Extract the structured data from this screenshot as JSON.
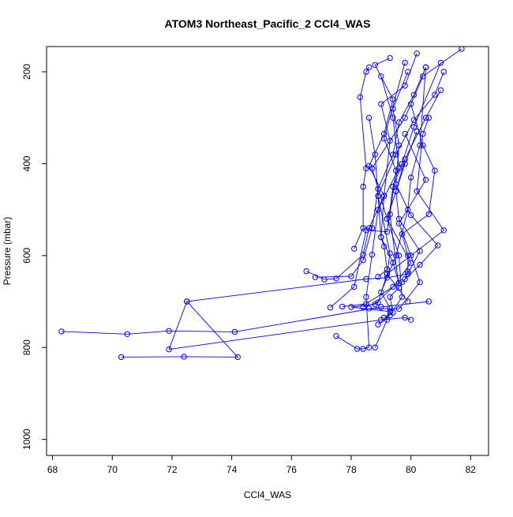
{
  "chart_data": {
    "type": "scatter",
    "title": "ATOM3 Northeast_Pacific_2 CCl4_WAS",
    "xlabel": "CCl4_WAS",
    "ylabel": "Pressure (mbar)",
    "xlim": [
      67.8,
      82.6
    ],
    "ylim": [
      1035,
      145
    ],
    "y_reversed": true,
    "grid": false,
    "legend": "none",
    "x_ticks": [
      68,
      70,
      72,
      74,
      76,
      78,
      80,
      82
    ],
    "y_ticks": [
      200,
      400,
      600,
      800,
      1000
    ],
    "colors": {
      "series": "#0000ff",
      "axis": "#000000"
    },
    "marker": "open-circle",
    "series": [
      {
        "x": [
          68.3,
          70.5,
          71.9,
          74.1,
          79.0,
          80.6
        ],
        "y": [
          765,
          771,
          764,
          766,
          712,
          700
        ]
      },
      {
        "x": [
          70.3,
          72.4,
          74.2,
          72.5,
          71.9,
          79.0,
          79.8,
          80.0
        ],
        "y": [
          821,
          820,
          821,
          700,
          804,
          740,
          735,
          740
        ]
      },
      {
        "x": [
          72.5,
          78.5,
          79.2,
          79.9,
          80.3,
          79.6,
          79.5,
          79.8,
          80.5,
          81.0
        ],
        "y": [
          700,
          651,
          648,
          640,
          590,
          520,
          460,
          390,
          300,
          240
        ]
      },
      {
        "x": [
          79.3,
          78.0,
          78.8,
          79.4,
          80.0,
          79.2,
          78.7,
          79.8,
          80.4,
          81.7
        ],
        "y": [
          722,
          712,
          706,
          668,
          616,
          520,
          410,
          300,
          210,
          150
        ]
      },
      {
        "x": [
          77.5,
          78.2,
          78.4,
          78.6,
          78.5,
          78.7,
          78.9,
          79.6,
          79.4,
          79.0
        ],
        "y": [
          775,
          803,
          803,
          800,
          690,
          598,
          500,
          410,
          300,
          210
        ]
      },
      {
        "x": [
          76.5,
          77.1,
          77.5,
          78.4,
          78.6,
          79.1,
          79.3,
          79.0,
          79.8,
          80.2
        ],
        "y": [
          634,
          652,
          650,
          598,
          540,
          470,
          350,
          270,
          230,
          160
        ]
      },
      {
        "x": [
          76.8,
          78.0,
          78.4,
          78.7,
          78.9,
          79.4,
          79.6,
          80.1,
          80.5
        ],
        "y": [
          647,
          645,
          610,
          540,
          455,
          380,
          310,
          250,
          190
        ]
      },
      {
        "x": [
          78.8,
          79.2,
          79.3,
          79.0,
          79.5,
          79.9,
          80.0,
          80.3,
          80.5
        ],
        "y": [
          800,
          740,
          714,
          680,
          600,
          500,
          430,
          360,
          190
        ]
      },
      {
        "x": [
          78.9,
          79.3,
          79.7,
          79.6,
          79.2,
          79.5,
          79.8,
          80.2
        ],
        "y": [
          750,
          730,
          690,
          600,
          520,
          460,
          400,
          330
        ]
      },
      {
        "x": [
          78.6,
          79.6,
          80.3,
          80.0,
          79.6,
          80.5,
          79.8
        ],
        "y": [
          715,
          716,
          658,
          600,
          530,
          435,
          335
        ]
      },
      {
        "x": [
          77.7,
          78.5,
          79.6,
          79.4,
          79.0,
          79.1,
          78.6,
          79.1,
          79.4,
          78.8,
          79.3
        ],
        "y": [
          711,
          705,
          660,
          615,
          560,
          470,
          405,
          335,
          260,
          185,
          170
        ]
      },
      {
        "x": [
          78.9,
          79.2,
          79.1,
          79.0,
          78.9,
          79.5,
          80.1,
          80.8,
          81.1
        ],
        "y": [
          646,
          630,
          580,
          560,
          470,
          380,
          305,
          250,
          200
        ]
      },
      {
        "x": [
          79.7,
          80.3,
          80.9,
          80.0,
          79.5,
          79.6,
          79.4,
          79.9
        ],
        "y": [
          658,
          620,
          578,
          512,
          445,
          360,
          280,
          200
        ]
      },
      {
        "x": [
          77.3,
          78.1,
          78.5,
          79.2,
          79.4,
          79.7,
          80.1,
          81.0
        ],
        "y": [
          713,
          668,
          545,
          548,
          450,
          400,
          320,
          180
        ]
      },
      {
        "x": [
          79.1,
          79.4,
          79.3,
          79.6,
          79.3,
          79.5,
          79.1,
          79.8
        ],
        "y": [
          735,
          724,
          690,
          670,
          510,
          415,
          345,
          180
        ]
      },
      {
        "x": [
          79.9,
          79.2,
          81.1,
          80.2,
          80.4,
          80.6
        ],
        "y": [
          700,
          640,
          545,
          460,
          335,
          300
        ]
      },
      {
        "x": [
          78.4,
          78.9,
          79.2,
          79.3,
          78.9,
          78.8,
          78.6
        ],
        "y": [
          712,
          702,
          640,
          595,
          470,
          380,
          300
        ]
      },
      {
        "x": [
          79.8,
          79.9,
          79.9,
          79.7,
          80.6,
          80.8,
          80.4,
          80.0
        ],
        "y": [
          651,
          635,
          600,
          553,
          510,
          415,
          360,
          270
        ]
      },
      {
        "x": [
          78.1,
          78.4,
          78.4,
          78.5,
          78.3,
          78.5,
          78.6
        ],
        "y": [
          585,
          540,
          450,
          410,
          255,
          200,
          190
        ]
      }
    ]
  }
}
